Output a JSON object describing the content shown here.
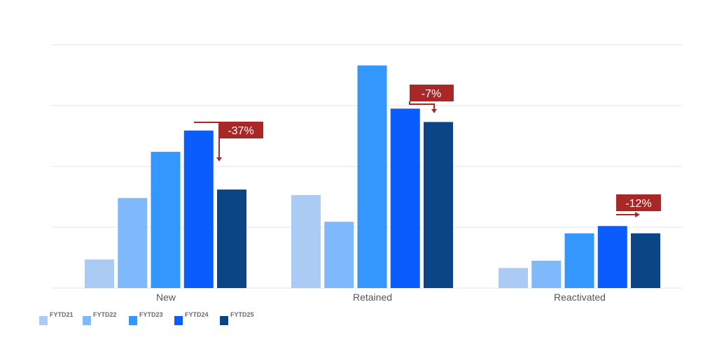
{
  "colors": {
    "series": [
      "#a9cbf4",
      "#7db9fb",
      "#3497fd",
      "#0b5cfc",
      "#0b4586"
    ],
    "callout": "#a82727",
    "grid": "#e4e4e4",
    "background": "#ffffff"
  },
  "chart_data": {
    "type": "bar",
    "title": "",
    "xlabel": "",
    "ylabel": "",
    "categories": [
      "New",
      "Retained",
      "Reactivated"
    ],
    "series": [
      {
        "name": "FYTD21",
        "values": [
          0.47,
          1.53,
          0.33
        ]
      },
      {
        "name": "FYTD22",
        "values": [
          1.48,
          1.09,
          0.45
        ]
      },
      {
        "name": "FYTD23",
        "values": [
          2.24,
          3.66,
          0.9
        ]
      },
      {
        "name": "FYTD24",
        "values": [
          2.59,
          2.95,
          1.02
        ]
      },
      {
        "name": "FYTD25",
        "values": [
          1.62,
          2.73,
          0.9
        ]
      }
    ],
    "ylim": [
      0,
      4
    ],
    "grid": true,
    "legend": "bottom-left",
    "annotations": [
      {
        "category": "New",
        "text": "-37%",
        "arrow": "down"
      },
      {
        "category": "Retained",
        "text": "-7%",
        "arrow": "down"
      },
      {
        "category": "Reactivated",
        "text": "-12%",
        "arrow": "right"
      }
    ]
  }
}
